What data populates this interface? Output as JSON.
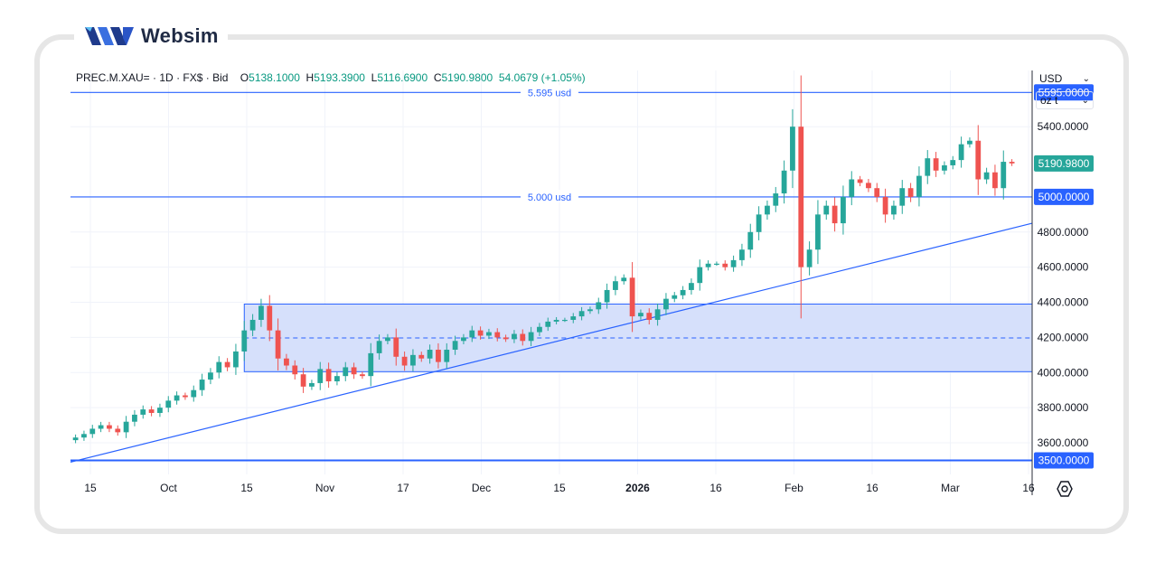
{
  "brand": {
    "name": "Websim"
  },
  "header": {
    "symbol": "PREC.M.XAU=",
    "sep1": "·",
    "interval": "1D",
    "sep2": "·",
    "source": "FX$",
    "sep3": "·",
    "price_type": "Bid",
    "open_label": "O",
    "open": "5138.1000",
    "high_label": "H",
    "high": "5193.3900",
    "low_label": "L",
    "low": "5116.6900",
    "close_label": "C",
    "close": "5190.9800",
    "change": "54.0679 (+1.05%)"
  },
  "toolbar": {
    "currency": "USD",
    "unit": "oz t"
  },
  "colors": {
    "up": "#26a69a",
    "down": "#ef5350",
    "line": "#2962ff",
    "zone_fill": "#d6e0fb",
    "last_price_bg": "#26a69a"
  },
  "chart_data": {
    "type": "candlestick",
    "y_axis": {
      "min": 3420,
      "max": 5720,
      "ticks": [
        "5400.0000",
        "4800.0000",
        "4600.0000",
        "4400.0000",
        "4200.0000",
        "4000.0000",
        "3800.0000",
        "3600.0000"
      ],
      "tick_values": [
        5400,
        4800,
        4600,
        4400,
        4200,
        4000,
        3800,
        3600
      ]
    },
    "x_axis": {
      "labels": [
        "15",
        "Oct",
        "15",
        "Nov",
        "17",
        "Dec",
        "15",
        "2026",
        "16",
        "Feb",
        "16",
        "Mar",
        "16"
      ],
      "bold": [
        false,
        false,
        false,
        false,
        false,
        false,
        false,
        true,
        false,
        false,
        false,
        false,
        false
      ]
    },
    "levels": [
      {
        "value": 5595,
        "label": "5.595 usd",
        "badge": "5595.0000"
      },
      {
        "value": 5000,
        "label": "5.000 usd",
        "badge": "5000.0000"
      },
      {
        "value": 3500,
        "label": "",
        "badge": "3500.0000"
      }
    ],
    "last_price": {
      "value": 5190.98,
      "badge": "5190.9800"
    },
    "zone": {
      "top": 4390,
      "bottom": 4005,
      "mid": 4197
    },
    "trendline": {
      "start": 3490,
      "end": 4850
    },
    "closes": [
      3630,
      3650,
      3680,
      3700,
      3680,
      3660,
      3720,
      3760,
      3790,
      3770,
      3800,
      3840,
      3870,
      3860,
      3900,
      3960,
      4000,
      4060,
      4030,
      4120,
      4240,
      4300,
      4380,
      4240,
      4080,
      4040,
      3990,
      3920,
      3940,
      4020,
      3950,
      3980,
      4030,
      3990,
      3980,
      4110,
      4180,
      4200,
      4090,
      4040,
      4100,
      4080,
      4130,
      4060,
      4130,
      4180,
      4200,
      4240,
      4210,
      4230,
      4200,
      4190,
      4220,
      4180,
      4230,
      4260,
      4290,
      4300,
      4300,
      4320,
      4350,
      4360,
      4400,
      4470,
      4520,
      4540,
      4320,
      4340,
      4300,
      4360,
      4420,
      4440,
      4470,
      4510,
      4600,
      4620,
      4620,
      4600,
      4640,
      4700,
      4800,
      4900,
      4950,
      5020,
      5150,
      5400,
      4600,
      4700,
      4900,
      4950,
      4850,
      5000,
      5100,
      5080,
      5050,
      5000,
      4900,
      4950,
      5050,
      5000,
      5120,
      5220,
      5150,
      5180,
      5210,
      5300,
      5320,
      5100,
      5140,
      5050,
      5200,
      5190.98
    ],
    "candle_count": 112
  }
}
